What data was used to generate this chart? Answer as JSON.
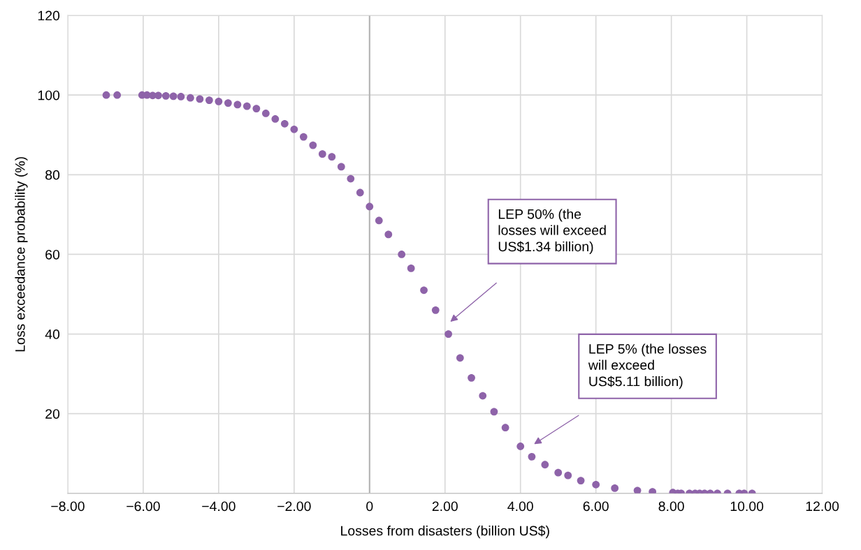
{
  "chart_data": {
    "type": "scatter",
    "xlabel": "Losses from disasters (billion US$)",
    "ylabel": "Loss exceedance probability (%)",
    "x": [
      -6.98,
      -6.69,
      -6.03,
      -5.9,
      -5.75,
      -5.6,
      -5.4,
      -5.2,
      -5.0,
      -4.75,
      -4.5,
      -4.25,
      -4.0,
      -3.75,
      -3.5,
      -3.25,
      -3.0,
      -2.75,
      -2.5,
      -2.25,
      -2.0,
      -1.75,
      -1.5,
      -1.25,
      -1.0,
      -0.75,
      -0.5,
      -0.25,
      0,
      0.25,
      0.5,
      0.85,
      1.1,
      1.44,
      1.75,
      2.09,
      2.4,
      2.7,
      3.0,
      3.3,
      3.6,
      4.0,
      4.3,
      4.65,
      5.0,
      5.26,
      5.6,
      6.0,
      6.5,
      7.1,
      7.5,
      8.04,
      8.17,
      8.26,
      8.48,
      8.63,
      8.75,
      8.88,
      9.03,
      9.22,
      9.49,
      9.8,
      9.93,
      10.14
    ],
    "series": [
      {
        "color": "#8e63a9",
        "values": [
          100,
          100,
          100,
          100,
          99.9,
          99.9,
          99.8,
          99.7,
          99.6,
          99.3,
          99.0,
          98.7,
          98.4,
          98.0,
          97.6,
          97.2,
          96.6,
          95.4,
          94.0,
          92.8,
          91.4,
          89.5,
          87.4,
          85.2,
          84.5,
          82,
          79,
          75.5,
          72,
          68.5,
          65,
          60,
          56.5,
          51,
          46,
          40,
          34,
          29,
          24.5,
          20.5,
          16.5,
          11.8,
          9.2,
          7.2,
          5.2,
          4.5,
          3.2,
          2.2,
          1.3,
          0.7,
          0.4,
          0.2,
          0,
          0,
          0,
          0,
          0,
          0,
          0,
          0,
          0,
          0,
          0,
          0
        ]
      }
    ],
    "xlim": [
      -8,
      12
    ],
    "xticks": [
      {
        "value": -8,
        "label": "−8.00"
      },
      {
        "value": -6,
        "label": "−6.00"
      },
      {
        "value": -4,
        "label": "−4.00"
      },
      {
        "value": -2,
        "label": "−2.00"
      },
      0,
      {
        "value": 2,
        "label": "2.00"
      },
      {
        "value": 4,
        "label": "4.00"
      },
      {
        "value": 6,
        "label": "6.00"
      },
      {
        "value": 8,
        "label": "8.00"
      },
      {
        "value": 10,
        "label": "10.00"
      },
      {
        "value": 12,
        "label": "12.00"
      }
    ],
    "ylim": [
      0,
      120
    ],
    "yticks": [
      {
        "value": 0,
        "label": null
      },
      20,
      40,
      60,
      80,
      100,
      120
    ],
    "grid": true,
    "legend": false,
    "marker": "circle",
    "ref_lines": [
      {
        "axis": "x",
        "value": 0,
        "color": "#b4b4b4"
      }
    ],
    "annotations": [
      "LEP 50% (the\nlosses will exceed\nUS$1.34 billion)",
      "LEP 5% (the losses\nwill exceed\nUS$5.11 billion)"
    ]
  }
}
